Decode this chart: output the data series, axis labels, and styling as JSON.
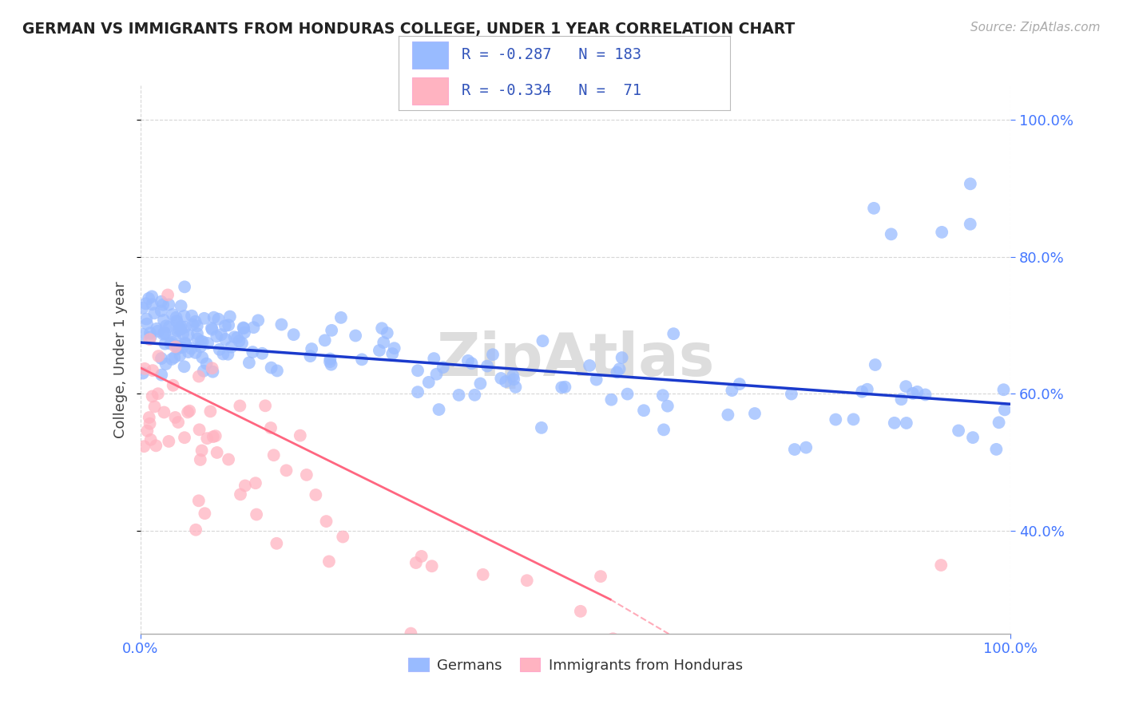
{
  "title": "GERMAN VS IMMIGRANTS FROM HONDURAS COLLEGE, UNDER 1 YEAR CORRELATION CHART",
  "source": "Source: ZipAtlas.com",
  "ylabel": "College, Under 1 year",
  "blue_color": "#99BBFF",
  "pink_color": "#FFB3C1",
  "line_blue": "#1A3ACC",
  "line_pink": "#FF6680",
  "watermark": "ZipAtlas",
  "tick_color": "#4477FF",
  "grid_color": "#CCCCCC",
  "title_color": "#222222",
  "ylabel_color": "#444444",
  "source_color": "#AAAAAA",
  "legend_top_text": [
    "R = -0.287   N = 183",
    "R = -0.334   N =  71"
  ],
  "legend_bottom_labels": [
    "Germans",
    "Immigrants from Honduras"
  ],
  "blue_line": [
    0.0,
    1.0,
    0.675,
    0.585
  ],
  "pink_line_solid": [
    0.0,
    0.54,
    0.638,
    0.3
  ],
  "pink_line_dashed": [
    0.54,
    1.0,
    0.3,
    -0.045
  ],
  "xlim": [
    0.0,
    1.0
  ],
  "ylim": [
    0.25,
    1.05
  ],
  "yticks": [
    0.4,
    0.6,
    0.8,
    1.0
  ],
  "ytick_labels": [
    "40.0%",
    "60.0%",
    "80.0%",
    "100.0%"
  ],
  "xtick_positions": [
    0.0,
    1.0
  ],
  "xtick_labels": [
    "0.0%",
    "100.0%"
  ]
}
